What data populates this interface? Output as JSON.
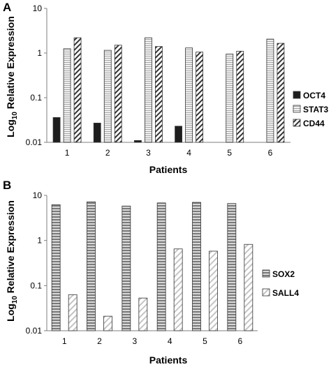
{
  "chart_data": [
    {
      "type": "bar",
      "panel_label": "A",
      "categories": [
        "1",
        "2",
        "3",
        "4",
        "5",
        "6"
      ],
      "series": [
        {
          "name": "OCT4",
          "values": [
            0.036,
            0.027,
            0.011,
            0.023,
            null,
            null
          ],
          "pattern": "solid",
          "color": "#1e1e1e"
        },
        {
          "name": "STAT3",
          "values": [
            1.25,
            1.15,
            2.2,
            1.3,
            0.95,
            2.05
          ],
          "pattern": "horizontal-stripes",
          "color": "#bdbdbd"
        },
        {
          "name": "CD44",
          "values": [
            2.2,
            1.5,
            1.4,
            1.05,
            1.1,
            1.65
          ],
          "pattern": "diagonal-hatch",
          "color": "#333333"
        }
      ],
      "xlabel": "Patients",
      "ylabel_main": "Log",
      "ylabel_sub": "10",
      "ylabel_rest": " Relative Expression",
      "yscale": "log",
      "ylim": [
        0.01,
        10
      ],
      "yticks": [
        "0.01",
        "0.1",
        "1",
        "10"
      ],
      "legend_position": "right"
    },
    {
      "type": "bar",
      "panel_label": "B",
      "categories": [
        "1",
        "2",
        "3",
        "4",
        "5",
        "6"
      ],
      "series": [
        {
          "name": "SOX2",
          "values": [
            6.2,
            7.2,
            5.8,
            6.8,
            7.0,
            6.6
          ],
          "pattern": "horizontal-stripes-dark",
          "color": "#8a8a8a"
        },
        {
          "name": "SALL4",
          "values": [
            0.063,
            0.021,
            0.053,
            0.65,
            0.58,
            0.82
          ],
          "pattern": "light-diagonal-hatch",
          "color": "#c8c8c8"
        }
      ],
      "xlabel": "Patients",
      "ylabel_main": "Log",
      "ylabel_sub": "10",
      "ylabel_rest": " Relative Expression",
      "yscale": "log",
      "ylim": [
        0.01,
        10
      ],
      "yticks": [
        "0.01",
        "0.1",
        "1",
        "10"
      ],
      "legend_position": "right"
    }
  ]
}
